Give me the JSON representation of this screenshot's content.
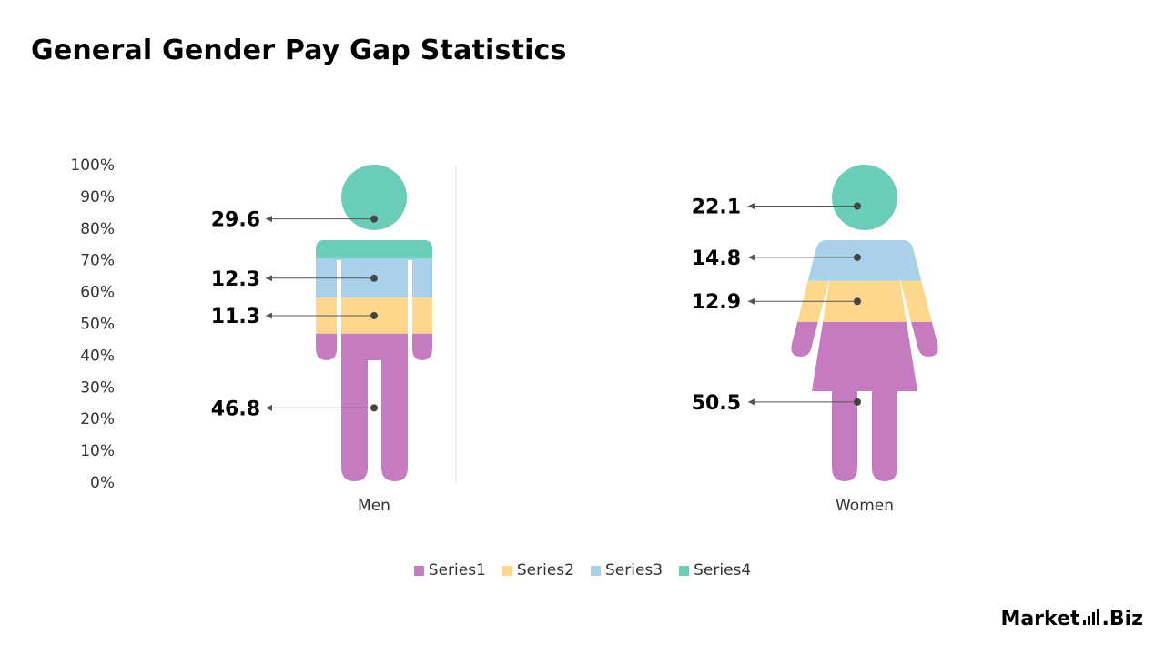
{
  "title": "General Gender Pay Gap Statistics",
  "chart_data": {
    "type": "bar",
    "stacked": true,
    "categories": [
      "Men",
      "Women"
    ],
    "series": [
      {
        "name": "Series1",
        "color": "#C47BBF",
        "values": [
          46.8,
          50.5
        ]
      },
      {
        "name": "Series2",
        "color": "#FDD88C",
        "values": [
          11.3,
          12.9
        ]
      },
      {
        "name": "Series3",
        "color": "#A9D1EC",
        "values": [
          12.3,
          14.8
        ]
      },
      {
        "name": "Series4",
        "color": "#6ACDB9",
        "values": [
          29.6,
          22.1
        ]
      }
    ],
    "yaxis": {
      "ticks": [
        "0%",
        "10%",
        "20%",
        "30%",
        "40%",
        "50%",
        "60%",
        "70%",
        "80%",
        "90%",
        "100%"
      ],
      "ylim": [
        0,
        100
      ]
    },
    "data_labels": {
      "Men": [
        "46.8",
        "11.3",
        "12.3",
        "29.6"
      ],
      "Women": [
        "50.5",
        "12.9",
        "14.8",
        "22.1"
      ]
    },
    "legend_position": "bottom",
    "grid": false
  },
  "brand": {
    "name_left": "Market",
    "name_right": ".Biz",
    "icon": "bar-chart-logo-icon"
  }
}
